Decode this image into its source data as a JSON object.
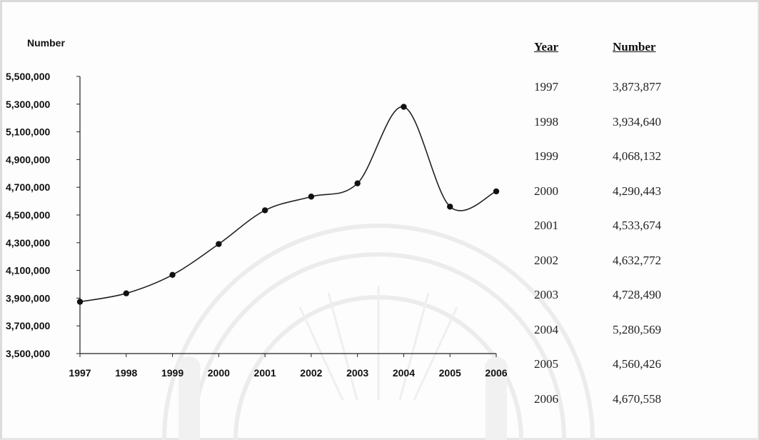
{
  "chart_data": {
    "type": "line",
    "ylabel": "Number",
    "xlabel": "",
    "ylim": [
      3500000,
      5500000
    ],
    "y_ticks": [
      "3,500,000",
      "3,700,000",
      "3,900,000",
      "4,100,000",
      "4,300,000",
      "4,500,000",
      "4,700,000",
      "4,900,000",
      "5,100,000",
      "5,300,000",
      "5,500,000"
    ],
    "y_tick_values": [
      3500000,
      3700000,
      3900000,
      4100000,
      4300000,
      4500000,
      4700000,
      4900000,
      5100000,
      5300000,
      5500000
    ],
    "categories": [
      "1997",
      "1998",
      "1999",
      "2000",
      "2001",
      "2002",
      "2003",
      "2004",
      "2005",
      "2006"
    ],
    "values": [
      3873877,
      3934640,
      4068132,
      4290443,
      4533674,
      4632772,
      4728490,
      5280569,
      4560426,
      4670558
    ],
    "grid": false,
    "line_color": "#222222",
    "marker": "circle"
  },
  "table": {
    "headers": [
      "Year",
      "Number"
    ],
    "rows": [
      {
        "year": "1997",
        "number": "3,873,877"
      },
      {
        "year": "1998",
        "number": "3,934,640"
      },
      {
        "year": "1999",
        "number": "4,068,132"
      },
      {
        "year": "2000",
        "number": "4,290,443"
      },
      {
        "year": "2001",
        "number": "4,533,674"
      },
      {
        "year": "2002",
        "number": "4,632,772"
      },
      {
        "year": "2003",
        "number": "4,728,490"
      },
      {
        "year": "2004",
        "number": "5,280,569"
      },
      {
        "year": "2005",
        "number": "4,560,426"
      },
      {
        "year": "2006",
        "number": "4,670,558"
      }
    ]
  }
}
